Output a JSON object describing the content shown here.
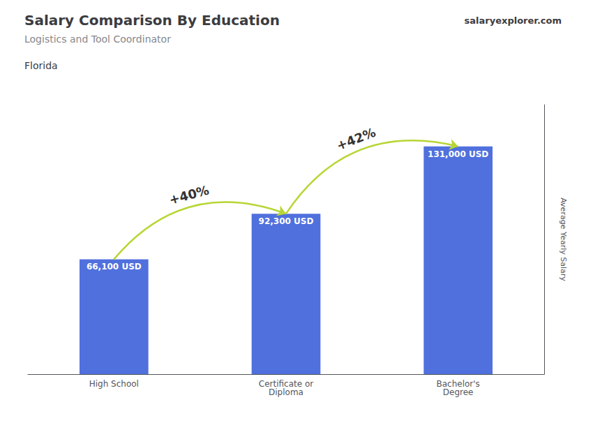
{
  "chart_data": {
    "type": "bar",
    "title": "Salary Comparison By Education",
    "subtitle": "Logistics and Tool Coordinator",
    "location": "Florida",
    "watermark": [
      "salary",
      "explorer",
      ".com"
    ],
    "ylabel": "Average Yearly Salary",
    "categories": [
      "High School",
      "Certificate or\nDiploma",
      "Bachelor's\nDegree"
    ],
    "values": [
      66100,
      92300,
      131000
    ],
    "value_labels": [
      "66,100 USD",
      "92,300 USD",
      "131,000 USD"
    ],
    "data_labels": true,
    "annotations": [
      {
        "text": "+40%",
        "from": "High School",
        "to": "Certificate or\nDiploma"
      },
      {
        "text": "+42%",
        "from": "Certificate or\nDiploma",
        "to": "Bachelor's\nDegree"
      }
    ],
    "ylim": [
      0,
      155000
    ],
    "tick_labels": "x",
    "grid": false
  }
}
